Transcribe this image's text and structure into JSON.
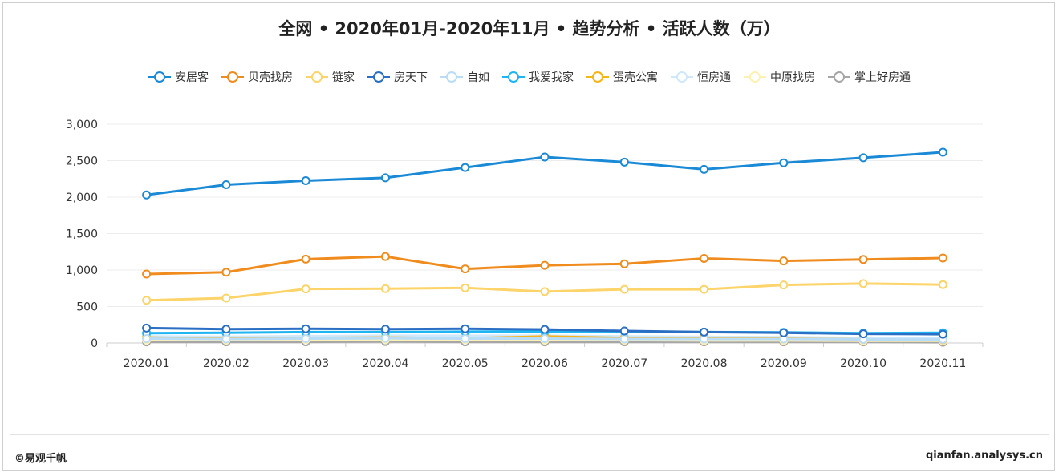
{
  "chart_data": {
    "type": "line",
    "title": "全网 • 2020年01月-2020年11月 • 趋势分析 • 活跃人数（万）",
    "categories": [
      "2020.01",
      "2020.02",
      "2020.03",
      "2020.04",
      "2020.05",
      "2020.06",
      "2020.07",
      "2020.08",
      "2020.09",
      "2020.10",
      "2020.11"
    ],
    "ylim": [
      0,
      3000
    ],
    "yticks": [
      0,
      500,
      1000,
      1500,
      2000,
      2500,
      3000
    ],
    "ytick_labels": [
      "0",
      "500",
      "1,000",
      "1,500",
      "2,000",
      "2,500",
      "3,000"
    ],
    "grid": true,
    "legend_position": "top",
    "series": [
      {
        "name": "安居客",
        "color": "#1a8ad6",
        "values": [
          2030,
          2170,
          2225,
          2265,
          2405,
          2550,
          2480,
          2380,
          2470,
          2540,
          2615
        ]
      },
      {
        "name": "贝壳找房",
        "color": "#f08c1e",
        "values": [
          945,
          970,
          1150,
          1185,
          1015,
          1065,
          1085,
          1160,
          1125,
          1145,
          1165
        ]
      },
      {
        "name": "链家",
        "color": "#fdd46a",
        "values": [
          585,
          615,
          740,
          745,
          755,
          705,
          735,
          735,
          795,
          815,
          800
        ]
      },
      {
        "name": "房天下",
        "color": "#2a6fc4",
        "values": [
          205,
          190,
          195,
          190,
          195,
          185,
          165,
          150,
          140,
          125,
          120
        ]
      },
      {
        "name": "自如",
        "color": "#b9dcf7",
        "values": [
          60,
          55,
          60,
          65,
          60,
          60,
          55,
          55,
          55,
          50,
          50
        ]
      },
      {
        "name": "我爱我家",
        "color": "#1fb4f2",
        "values": [
          135,
          140,
          150,
          150,
          155,
          160,
          160,
          150,
          145,
          135,
          140
        ]
      },
      {
        "name": "蛋壳公寓",
        "color": "#f6b41c",
        "values": [
          75,
          60,
          70,
          75,
          65,
          90,
          70,
          70,
          60,
          50,
          45
        ]
      },
      {
        "name": "恒房通",
        "color": "#cfe8fb",
        "values": [
          90,
          85,
          95,
          100,
          100,
          100,
          90,
          85,
          80,
          70,
          70
        ]
      },
      {
        "name": "中原找房",
        "color": "#fff0b4",
        "values": [
          40,
          40,
          45,
          45,
          45,
          40,
          40,
          35,
          35,
          30,
          30
        ]
      },
      {
        "name": "掌上好房通",
        "color": "#a6a6a6",
        "values": [
          15,
          15,
          15,
          20,
          15,
          15,
          15,
          15,
          15,
          15,
          10
        ]
      }
    ]
  },
  "footer": {
    "left": "©易观千帆",
    "right": "qianfan.analysys.cn"
  }
}
